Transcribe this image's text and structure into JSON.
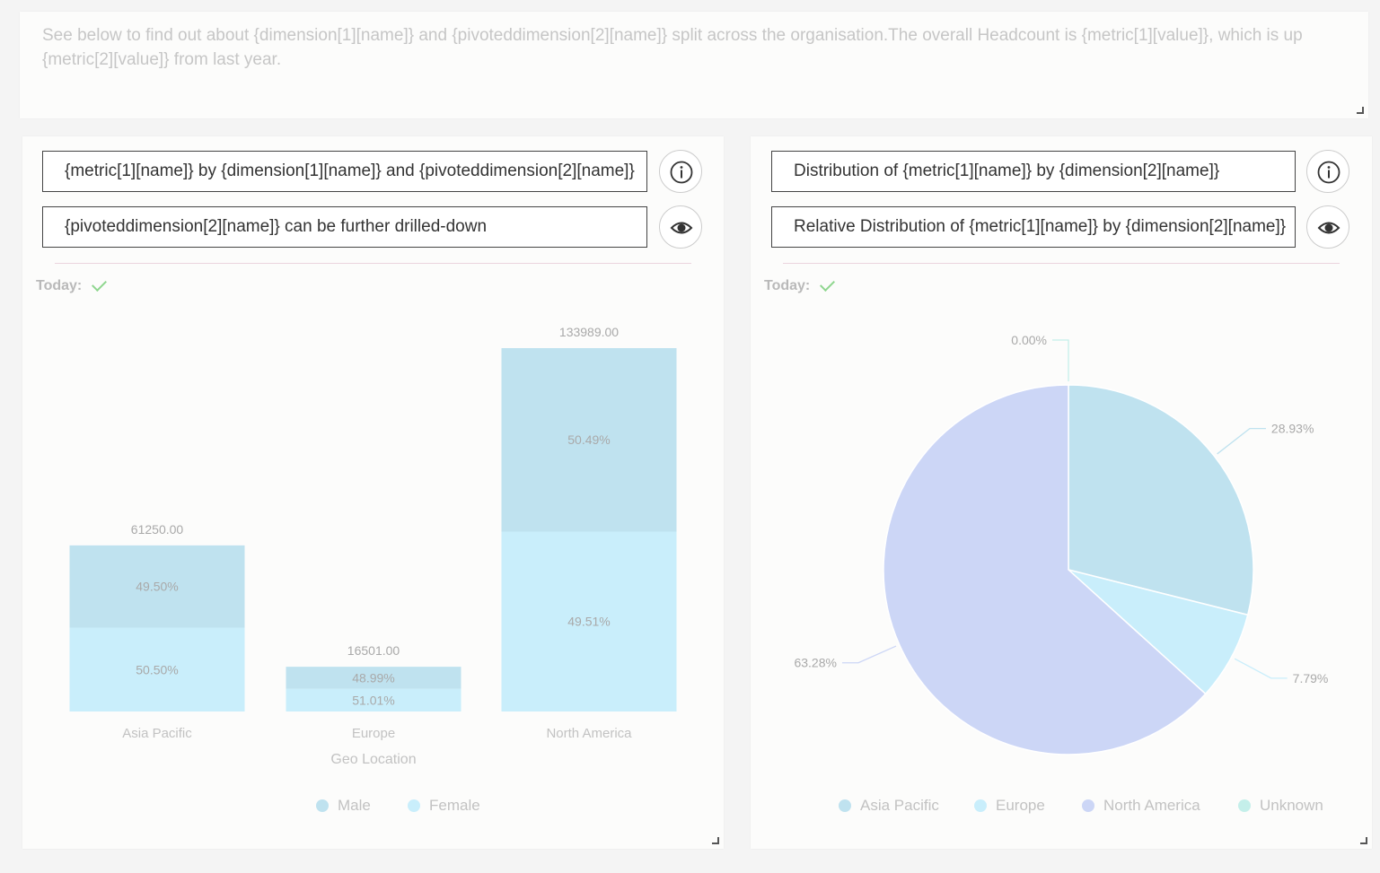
{
  "intro": {
    "text": "See below to find out about {dimension[1][name]} and {pivoteddimension[2][name]} split across the organisation.The overall Headcount is {metric[1][value]}, which is up {metric[2][value]} from last year."
  },
  "bar_panel": {
    "title": "{metric[1][name]} by {dimension[1][name]} and {pivoteddimension[2][name]}",
    "subtitle": "{pivoteddimension[2][name]} can be further drilled-down",
    "today_label": "Today:"
  },
  "pie_panel": {
    "title": "Distribution of {metric[1][name]}  by {dimension[2][name]}",
    "subtitle": "Relative Distribution of {metric[1][name]}  by {dimension[2][name]}",
    "today_label": "Today:"
  },
  "colors": {
    "male": "#bfe2ef",
    "female": "#c9eefb",
    "asia_pacific": "#bfe2ef",
    "europe": "#c9eefb",
    "north_america": "#ccd6f6",
    "unknown": "#c4efea"
  },
  "chart_data": [
    {
      "type": "bar",
      "stacked": true,
      "xlabel": "Geo Location",
      "categories": [
        "Asia Pacific",
        "Europe",
        "North America"
      ],
      "totals": [
        "61250.00",
        "16501.00",
        "133989.00"
      ],
      "total_values": [
        61250,
        16501,
        133989
      ],
      "series": [
        {
          "name": "Female",
          "color": "#c9eefb",
          "percent_labels": [
            "50.50%",
            "51.01%",
            "49.51%"
          ],
          "values": [
            30931,
            8417,
            66338
          ]
        },
        {
          "name": "Male",
          "color": "#bfe2ef",
          "percent_labels": [
            "49.50%",
            "48.99%",
            "50.49%"
          ],
          "values": [
            30319,
            8084,
            67651
          ]
        }
      ],
      "legend": [
        "Male",
        "Female"
      ],
      "legend_position": "bottom-center"
    },
    {
      "type": "pie",
      "slices": [
        {
          "label": "Asia Pacific",
          "value": 28.93,
          "display": "28.93%",
          "color": "#bfe2ef"
        },
        {
          "label": "Europe",
          "value": 7.79,
          "display": "7.79%",
          "color": "#c9eefb"
        },
        {
          "label": "North America",
          "value": 63.28,
          "display": "63.28%",
          "color": "#ccd6f6"
        },
        {
          "label": "Unknown",
          "value": 0.0,
          "display": "0.00%",
          "color": "#c4efea"
        }
      ],
      "legend": [
        "Asia Pacific",
        "Europe",
        "North America",
        "Unknown"
      ],
      "legend_position": "bottom-center"
    }
  ]
}
